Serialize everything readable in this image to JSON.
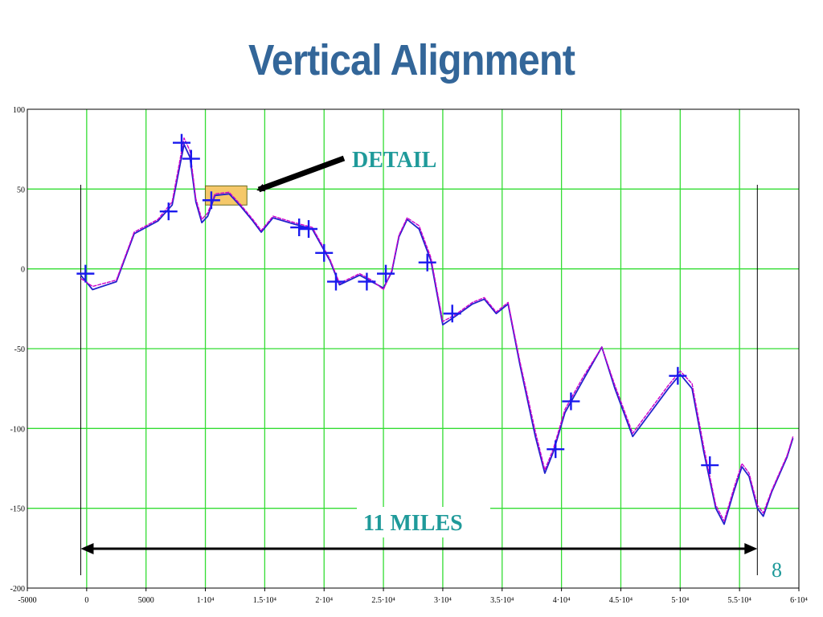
{
  "slide": {
    "title": "Vertical Alignment",
    "page_number": "8"
  },
  "annotations": {
    "detail": "DETAIL",
    "span": "11 MILES"
  },
  "colors": {
    "title": "#336699",
    "grid": "#33dd33",
    "profile_a": "#2222cc",
    "profile_b": "#cc00cc",
    "markers": "#1a1aee",
    "note": "#1f9a9a",
    "detail_box": "#f5c86a"
  },
  "chart_data": {
    "type": "line",
    "grid": true,
    "xlim": [
      -5000,
      60000
    ],
    "ylim": [
      -200,
      100
    ],
    "x_ticks": [
      -5000,
      0,
      5000,
      10000,
      15000,
      20000,
      25000,
      30000,
      35000,
      40000,
      45000,
      50000,
      55000,
      60000
    ],
    "x_tick_labels": [
      "-5000",
      "0",
      "5000",
      "1·10⁴",
      "1.5·10⁴",
      "2·10⁴",
      "2.5·10⁴",
      "3·10⁴",
      "3.5·10⁴",
      "4·10⁴",
      "4.5·10⁴",
      "5·10⁴",
      "5.5·10⁴",
      "6·10⁴"
    ],
    "y_ticks": [
      100,
      50,
      0,
      -50,
      -100,
      -150,
      -200
    ],
    "y_tick_labels": [
      "100",
      "50",
      "0",
      "-50",
      "-100",
      "-150",
      "-200"
    ],
    "series": [
      {
        "values_xy": [
          [
            -500,
            -4
          ],
          [
            500,
            -13
          ],
          [
            2500,
            -8
          ],
          [
            4000,
            22
          ],
          [
            6000,
            30
          ],
          [
            7200,
            40
          ],
          [
            8200,
            78
          ],
          [
            8700,
            70
          ],
          [
            9200,
            42
          ],
          [
            9700,
            29
          ],
          [
            10200,
            33
          ],
          [
            10800,
            46
          ],
          [
            12000,
            47
          ],
          [
            13000,
            39
          ],
          [
            14000,
            30
          ],
          [
            14700,
            23
          ],
          [
            15700,
            32
          ],
          [
            17500,
            28
          ],
          [
            19000,
            25
          ],
          [
            20500,
            5
          ],
          [
            21300,
            -10
          ],
          [
            23000,
            -4
          ],
          [
            24000,
            -8
          ],
          [
            25000,
            -12
          ],
          [
            25700,
            -2
          ],
          [
            26300,
            20
          ],
          [
            27000,
            31
          ],
          [
            28000,
            25
          ],
          [
            29000,
            5
          ],
          [
            30000,
            -35
          ],
          [
            31000,
            -30
          ],
          [
            32500,
            -22
          ],
          [
            33500,
            -19
          ],
          [
            34500,
            -28
          ],
          [
            35500,
            -22
          ],
          [
            36500,
            -60
          ],
          [
            37800,
            -105
          ],
          [
            38600,
            -128
          ],
          [
            39300,
            -115
          ],
          [
            40300,
            -90
          ],
          [
            41800,
            -70
          ],
          [
            43400,
            -49
          ],
          [
            44500,
            -75
          ],
          [
            46000,
            -105
          ],
          [
            47500,
            -90
          ],
          [
            49000,
            -75
          ],
          [
            50000,
            -66
          ],
          [
            51000,
            -75
          ],
          [
            52000,
            -115
          ],
          [
            53000,
            -150
          ],
          [
            53700,
            -160
          ],
          [
            54500,
            -140
          ],
          [
            55200,
            -124
          ],
          [
            55800,
            -130
          ],
          [
            56500,
            -150
          ],
          [
            57000,
            -155
          ],
          [
            57700,
            -140
          ],
          [
            59000,
            -118
          ],
          [
            59500,
            -106
          ]
        ]
      },
      {
        "values_xy": [
          [
            -500,
            -6
          ],
          [
            500,
            -11
          ],
          [
            2500,
            -7
          ],
          [
            4000,
            23
          ],
          [
            6000,
            31
          ],
          [
            7200,
            42
          ],
          [
            8200,
            82
          ],
          [
            8700,
            74
          ],
          [
            9200,
            44
          ],
          [
            9700,
            31
          ],
          [
            10200,
            35
          ],
          [
            10800,
            47
          ],
          [
            12000,
            48
          ],
          [
            13000,
            40
          ],
          [
            14000,
            31
          ],
          [
            14700,
            24
          ],
          [
            15700,
            33
          ],
          [
            17500,
            29
          ],
          [
            19000,
            26
          ],
          [
            20500,
            6
          ],
          [
            21300,
            -9
          ],
          [
            23000,
            -3
          ],
          [
            24000,
            -7
          ],
          [
            25000,
            -13
          ],
          [
            25700,
            -1
          ],
          [
            26300,
            21
          ],
          [
            27000,
            32
          ],
          [
            28000,
            27
          ],
          [
            29000,
            7
          ],
          [
            30000,
            -33
          ],
          [
            31000,
            -29
          ],
          [
            32500,
            -21
          ],
          [
            33500,
            -18
          ],
          [
            34500,
            -27
          ],
          [
            35500,
            -21
          ],
          [
            36500,
            -58
          ],
          [
            37800,
            -102
          ],
          [
            38600,
            -126
          ],
          [
            39300,
            -113
          ],
          [
            40300,
            -88
          ],
          [
            41800,
            -68
          ],
          [
            43400,
            -49
          ],
          [
            44500,
            -73
          ],
          [
            46000,
            -103
          ],
          [
            47500,
            -88
          ],
          [
            49000,
            -73
          ],
          [
            50000,
            -64
          ],
          [
            51000,
            -72
          ],
          [
            52000,
            -112
          ],
          [
            53000,
            -148
          ],
          [
            53700,
            -158
          ],
          [
            54500,
            -138
          ],
          [
            55200,
            -122
          ],
          [
            55800,
            -128
          ],
          [
            56500,
            -148
          ],
          [
            57000,
            -153
          ],
          [
            57700,
            -139
          ],
          [
            59000,
            -117
          ],
          [
            59500,
            -105
          ]
        ]
      }
    ],
    "markers_xy": [
      [
        -100,
        -3
      ],
      [
        8000,
        79
      ],
      [
        8800,
        69
      ],
      [
        6900,
        36
      ],
      [
        10500,
        43
      ],
      [
        17900,
        26
      ],
      [
        18700,
        25
      ],
      [
        20000,
        10
      ],
      [
        21000,
        -8
      ],
      [
        23600,
        -8
      ],
      [
        25200,
        -3
      ],
      [
        28700,
        4
      ],
      [
        30800,
        -28
      ],
      [
        39500,
        -113
      ],
      [
        40800,
        -83
      ],
      [
        49800,
        -67
      ],
      [
        52500,
        -123
      ]
    ],
    "detail_box_x": [
      10000,
      13500
    ],
    "detail_box_y": [
      40,
      52
    ],
    "span_x": [
      -500,
      56500
    ]
  }
}
